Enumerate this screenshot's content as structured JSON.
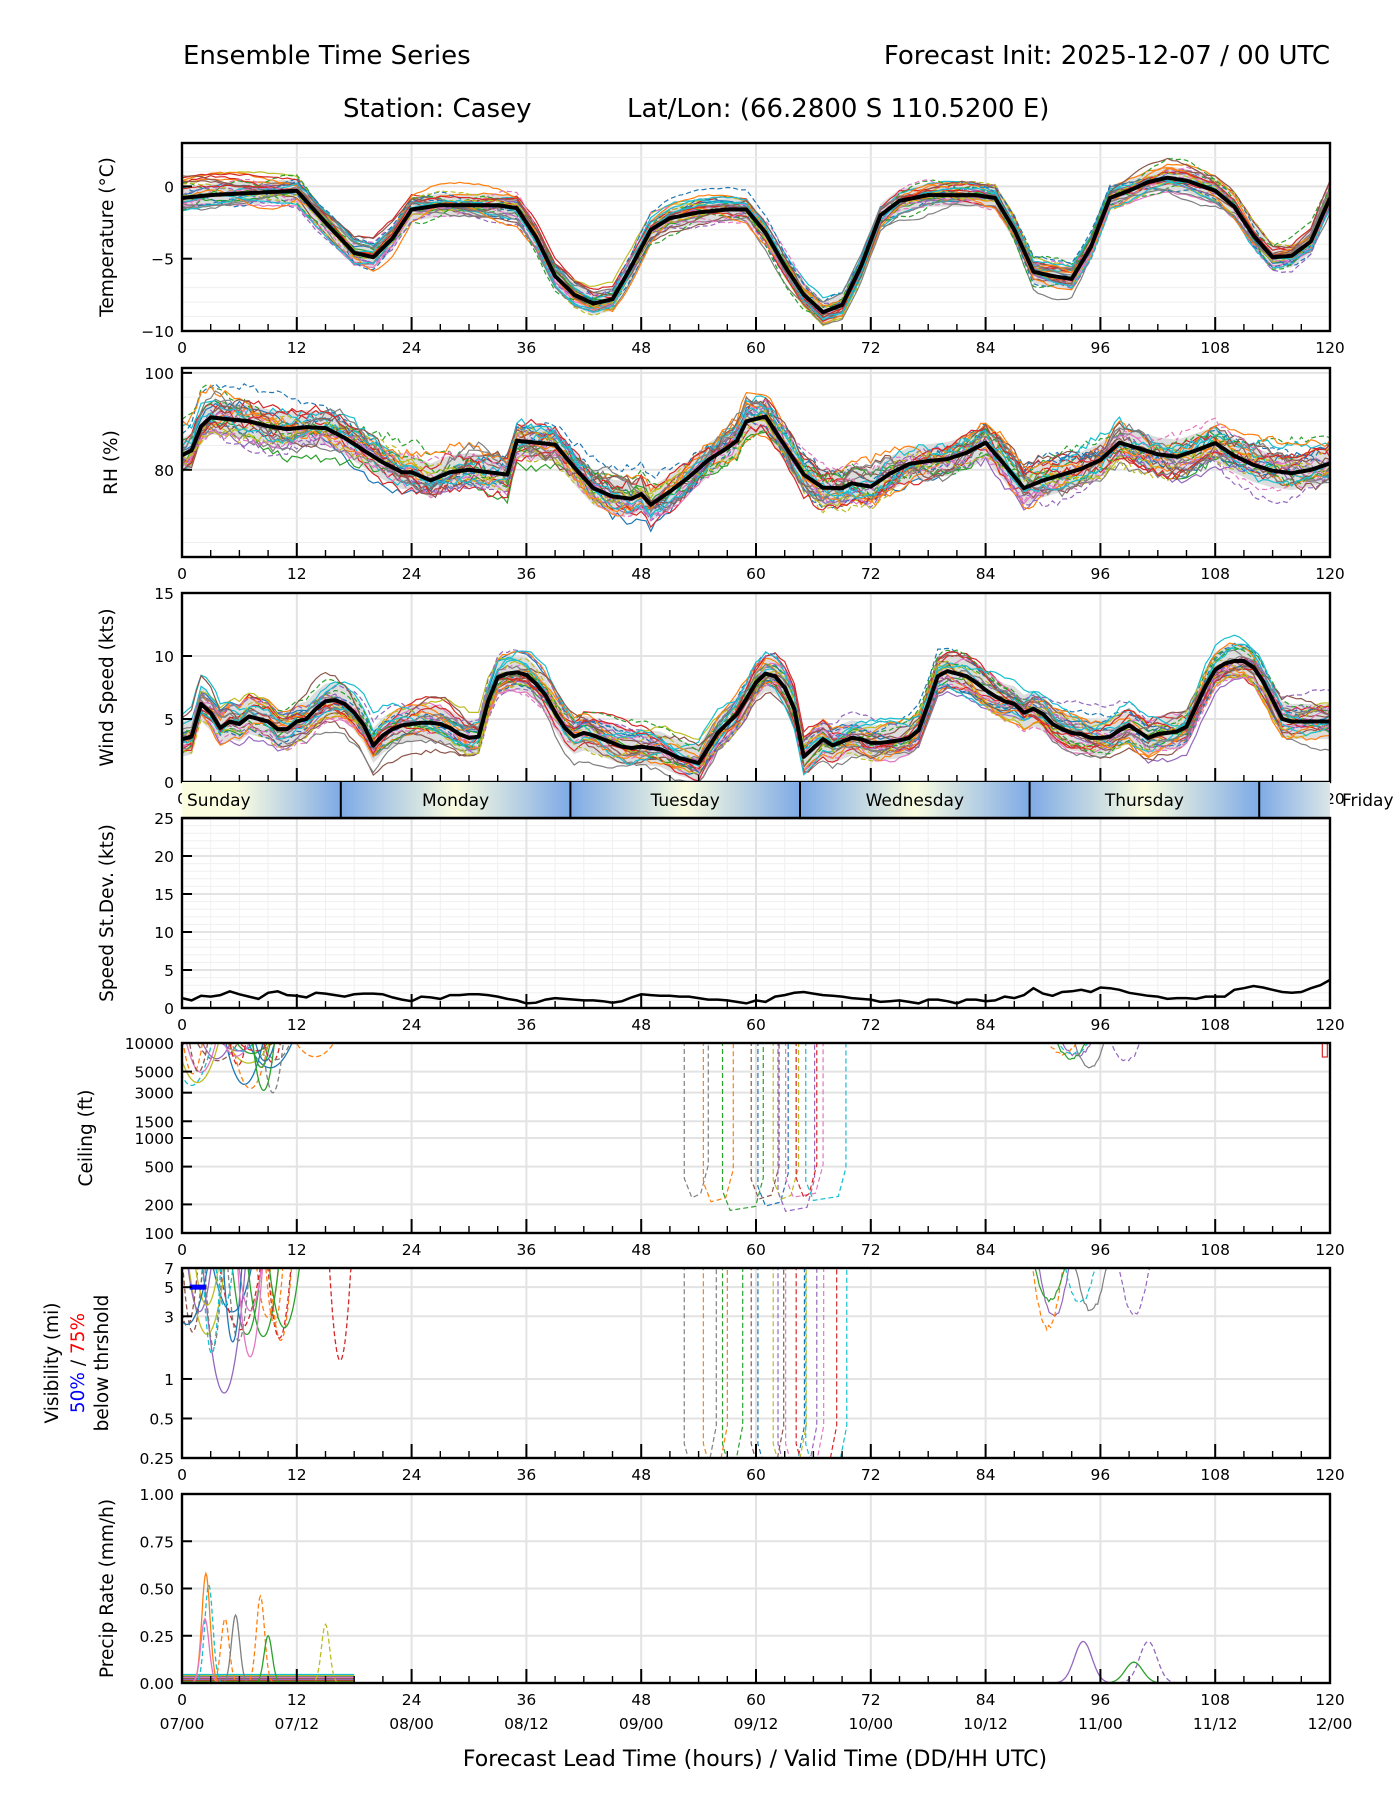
{
  "header": {
    "title_left": "Ensemble Time Series",
    "title_right": "Forecast Init: 2025-12-07 / 00 UTC",
    "station": "Station: Casey",
    "latlon": "Lat/Lon: (66.2800 S 110.5200 E)"
  },
  "x_axis": {
    "label": "Forecast Lead Time (hours) / Valid Time (DD/HH UTC)",
    "range": [
      0,
      120
    ],
    "ticks": [
      0,
      12,
      24,
      36,
      48,
      60,
      72,
      84,
      96,
      108,
      120
    ],
    "tick_labels": [
      "0",
      "12",
      "24",
      "36",
      "48",
      "60",
      "72",
      "84",
      "96",
      "108",
      "120"
    ],
    "valid_time_labels": [
      "07/00",
      "07/12",
      "08/00",
      "08/12",
      "09/00",
      "09/12",
      "10/00",
      "10/12",
      "11/00",
      "11/12",
      "12/00"
    ]
  },
  "day_band": {
    "days": [
      {
        "label": "Sunday",
        "start": 0,
        "end": 16.6
      },
      {
        "label": "Monday",
        "start": 16.6,
        "end": 40.6
      },
      {
        "label": "Tuesday",
        "start": 40.6,
        "end": 64.6
      },
      {
        "label": "Wednesday",
        "start": 64.6,
        "end": 88.6
      },
      {
        "label": "Thursday",
        "start": 88.6,
        "end": 112.6
      },
      {
        "label": "Friday",
        "start": 112.6,
        "end": 120
      }
    ],
    "colors": {
      "light": "#fbfde0",
      "dark": "#7eaae6"
    }
  },
  "colors": {
    "mean": "#000000",
    "spread": "#d9d9d9",
    "members": [
      "#1f77b4",
      "#ff7f0e",
      "#2ca02c",
      "#d62728",
      "#9467bd",
      "#8c564b",
      "#e377c2",
      "#7f7f7f",
      "#bcbd22",
      "#17becf"
    ],
    "grid": "#e3e3e3",
    "vis_50": "#0000ff",
    "vis_75": "#ff0000"
  },
  "chart_data": [
    {
      "id": "temperature",
      "type": "line",
      "title": "",
      "ylabel": "Temperature (°C)",
      "ylim": [
        -10,
        3
      ],
      "yticks": [
        -10,
        -5,
        0
      ],
      "ytick_labels": [
        "−10",
        "−5",
        "0"
      ],
      "x": [
        0,
        3,
        6,
        9,
        12,
        15,
        18,
        20,
        22,
        24,
        27,
        30,
        33,
        35,
        37,
        39,
        41,
        43,
        45,
        47,
        49,
        51,
        54,
        57,
        59,
        61,
        63,
        65,
        67,
        69,
        71,
        73,
        75,
        78,
        81,
        83,
        85,
        87,
        89,
        91,
        93,
        95,
        97,
        99,
        101,
        103,
        105,
        108,
        110,
        112,
        114,
        116,
        118,
        120
      ],
      "mean": [
        -0.8,
        -0.6,
        -0.5,
        -0.4,
        -0.3,
        -2.5,
        -4.6,
        -4.9,
        -3.6,
        -1.6,
        -1.3,
        -1.3,
        -1.3,
        -1.5,
        -3.5,
        -6.2,
        -7.5,
        -8.1,
        -7.8,
        -5.5,
        -3.0,
        -2.2,
        -1.8,
        -1.6,
        -1.6,
        -3.2,
        -5.5,
        -7.5,
        -8.7,
        -8.2,
        -5.5,
        -2.0,
        -1.0,
        -0.6,
        -0.6,
        -0.6,
        -0.8,
        -3.0,
        -5.9,
        -6.2,
        -6.4,
        -4.2,
        -0.8,
        -0.3,
        0.3,
        0.6,
        0.4,
        -0.3,
        -1.4,
        -3.4,
        -4.9,
        -4.8,
        -3.8,
        -0.8
      ],
      "members_count": 30,
      "spread": 0.8
    },
    {
      "id": "rh",
      "type": "line",
      "ylabel": "RH (%)",
      "ylim": [
        62,
        101
      ],
      "yticks": [
        80,
        100
      ],
      "ytick_labels": [
        "80",
        "100"
      ],
      "x": [
        0,
        1,
        2,
        3,
        5,
        7,
        9,
        11,
        13,
        15,
        17,
        19,
        21,
        23,
        24,
        26,
        28,
        30,
        32,
        34,
        35,
        37,
        39,
        41,
        43,
        45,
        47,
        48,
        49,
        51,
        53,
        55,
        57,
        58,
        59,
        61,
        63,
        65,
        67,
        69,
        70,
        72,
        74,
        76,
        78,
        80,
        82,
        84,
        86,
        88,
        90,
        92,
        94,
        96,
        98,
        100,
        102,
        104,
        106,
        108,
        110,
        112,
        114,
        116,
        118,
        120
      ],
      "mean": [
        83,
        84,
        89,
        90.8,
        90.4,
        90,
        89,
        88.4,
        88.8,
        88.6,
        86.6,
        84,
        81.5,
        79.5,
        79.5,
        77.8,
        79.5,
        80,
        79.5,
        79,
        86,
        85.6,
        85.2,
        80.5,
        76.2,
        74.5,
        74,
        75,
        72.8,
        75.5,
        78.5,
        82,
        84.5,
        86,
        90,
        91,
        85,
        79,
        76.3,
        76.2,
        77.2,
        76.5,
        79.2,
        81.2,
        81.8,
        82.2,
        83.5,
        85.6,
        81,
        76.2,
        77.8,
        79,
        80.2,
        82,
        85.6,
        84.4,
        83.2,
        82.7,
        84,
        85.5,
        82.9,
        81,
        79.8,
        79.3,
        80,
        81.3
      ],
      "members_count": 30,
      "spread": 3.5
    },
    {
      "id": "wind_speed",
      "type": "line",
      "ylabel": "Wind Speed (kts)",
      "ylim": [
        0,
        15
      ],
      "yticks": [
        0,
        5,
        10,
        15
      ],
      "ytick_labels": [
        "0",
        "5",
        "10",
        "15"
      ],
      "x": [
        0,
        1,
        2,
        3,
        4,
        5,
        6,
        7,
        8,
        9,
        10,
        11,
        12,
        13,
        14,
        15,
        16,
        17,
        18,
        19,
        20,
        21,
        22,
        23,
        24,
        25,
        26,
        27,
        28,
        29,
        30,
        31,
        32,
        33,
        34,
        35,
        36,
        37,
        38,
        39,
        40,
        41,
        42,
        43,
        44,
        45,
        46,
        47,
        48,
        50,
        52,
        54,
        56,
        58,
        59,
        60,
        61,
        62,
        63,
        64,
        65,
        66,
        67,
        68,
        69,
        70,
        71,
        72,
        73,
        74,
        75,
        76,
        77,
        78,
        79,
        80,
        81,
        82,
        83,
        84,
        85,
        86,
        87,
        88,
        89,
        90,
        91,
        92,
        93,
        94,
        95,
        96,
        97,
        98,
        99,
        100,
        101,
        102,
        103,
        104,
        105,
        106,
        107,
        108,
        109,
        110,
        111,
        112,
        113,
        114,
        115,
        116,
        117,
        118,
        119,
        120
      ],
      "mean": [
        3.4,
        3.6,
        6.2,
        5.5,
        4.3,
        4.8,
        4.6,
        5.2,
        5,
        4.8,
        4.2,
        4.2,
        4.8,
        5,
        5.8,
        6.4,
        6.5,
        6.2,
        5.5,
        4.5,
        2.9,
        3.7,
        4.2,
        4.5,
        4.6,
        4.7,
        4.7,
        4.6,
        4.3,
        3.8,
        3.5,
        3.6,
        6.4,
        8.3,
        8.6,
        8.7,
        8.5,
        7.8,
        6.9,
        5.5,
        4.3,
        3.6,
        3.9,
        3.7,
        3.4,
        3.1,
        2.8,
        2.7,
        2.8,
        2.6,
        1.9,
        1.5,
        3.9,
        5.4,
        6.6,
        7.9,
        8.6,
        8.4,
        7.5,
        5.8,
        2,
        2.7,
        3.4,
        2.9,
        3.2,
        3.5,
        3.4,
        3.1,
        3.1,
        3.2,
        3.3,
        3.5,
        4.1,
        6.2,
        8.4,
        8.8,
        8.6,
        8.4,
        7.9,
        7.3,
        6.8,
        6.4,
        6.2,
        5.5,
        5.8,
        5.4,
        4.6,
        4.2,
        3.9,
        3.8,
        3.5,
        3.5,
        3.6,
        4.1,
        4.5,
        4.0,
        3.5,
        3.8,
        3.9,
        4.0,
        4.4,
        6.0,
        7.6,
        8.9,
        9.4,
        9.6,
        9.6,
        9.1,
        8.0,
        6.5,
        5.0,
        4.8,
        4.8,
        4.8,
        4.8,
        4.8
      ],
      "members_count": 30,
      "spread": 1.4
    },
    {
      "id": "speed_stdev",
      "type": "line",
      "ylabel": "Speed St.Dev. (kts)",
      "ylim": [
        0,
        25
      ],
      "yticks": [
        0,
        5,
        10,
        15,
        20,
        25
      ],
      "ytick_labels": [
        "0",
        "5",
        "10",
        "15",
        "20",
        "25"
      ],
      "x": [
        0,
        1,
        2,
        3,
        4,
        5,
        6,
        7,
        8,
        9,
        10,
        11,
        12,
        13,
        14,
        15,
        16,
        17,
        18,
        19,
        20,
        21,
        22,
        23,
        24,
        25,
        26,
        27,
        28,
        29,
        30,
        31,
        32,
        33,
        34,
        35,
        36,
        37,
        38,
        39,
        40,
        41,
        42,
        43,
        44,
        45,
        46,
        47,
        48,
        49,
        50,
        51,
        52,
        53,
        54,
        55,
        56,
        57,
        58,
        59,
        60,
        61,
        62,
        63,
        64,
        65,
        66,
        67,
        68,
        69,
        70,
        71,
        72,
        73,
        74,
        75,
        76,
        77,
        78,
        79,
        80,
        81,
        82,
        83,
        84,
        85,
        86,
        87,
        88,
        89,
        90,
        91,
        92,
        93,
        94,
        95,
        96,
        97,
        98,
        99,
        100,
        101,
        102,
        103,
        104,
        105,
        106,
        107,
        108,
        109,
        110,
        111,
        112,
        113,
        114,
        115,
        116,
        117,
        118,
        119,
        120
      ],
      "values": [
        1.3,
        1.0,
        1.6,
        1.5,
        1.7,
        2.2,
        1.8,
        1.5,
        1.2,
        2.0,
        2.2,
        1.7,
        1.6,
        1.4,
        2.0,
        1.9,
        1.7,
        1.5,
        1.8,
        1.9,
        1.9,
        1.8,
        1.4,
        1.1,
        0.9,
        1.5,
        1.4,
        1.2,
        1.7,
        1.7,
        1.8,
        1.8,
        1.7,
        1.5,
        1.2,
        1.0,
        0.6,
        0.7,
        1.1,
        1.3,
        1.2,
        1.1,
        1.0,
        1.0,
        0.9,
        0.7,
        0.9,
        1.4,
        1.8,
        1.7,
        1.6,
        1.6,
        1.5,
        1.5,
        1.3,
        1.1,
        1.1,
        1.0,
        0.8,
        0.6,
        1.0,
        0.8,
        1.5,
        1.7,
        2.0,
        2.1,
        1.9,
        1.7,
        1.6,
        1.5,
        1.3,
        1.2,
        1.1,
        0.8,
        0.9,
        1.0,
        0.8,
        0.6,
        1.1,
        1.1,
        0.9,
        0.6,
        1.1,
        1.1,
        0.9,
        1.0,
        1.5,
        1.3,
        1.7,
        2.6,
        1.9,
        1.6,
        2.1,
        2.2,
        2.4,
        2.1,
        2.7,
        2.6,
        2.4,
        2.0,
        1.8,
        1.6,
        1.5,
        1.2,
        1.3,
        1.3,
        1.2,
        1.5,
        1.5,
        1.5,
        2.4,
        2.6,
        2.9,
        2.7,
        2.4,
        2.1,
        2.0,
        2.1,
        2.6,
        3.0,
        3.7
      ]
    },
    {
      "id": "ceiling",
      "type": "line",
      "ylabel": "Ceiling (ft)",
      "yscale": "log",
      "ylim": [
        100,
        10000
      ],
      "yticks": [
        100,
        200,
        500,
        1000,
        1500,
        3000,
        5000,
        10000
      ],
      "ytick_labels": [
        "100",
        "200",
        "500",
        "1000",
        "1500",
        "3000",
        "5000",
        "10000"
      ],
      "notes": "Members mostly above 10000 ft; early dips (0–18 h) to ~2800–8000 ft; low ceilings ~140–300 ft around 52–66 h; dips to ~5500 ft near 88–102 h"
    },
    {
      "id": "visibility",
      "type": "line",
      "ylabel": "Visibility (mi)",
      "ylabel_line2": "50% / 75%",
      "ylabel_line3": "below thrshold",
      "yscale": "log",
      "ylim": [
        0.25,
        7
      ],
      "yticks": [
        0.25,
        0.5,
        1,
        3,
        5,
        7
      ],
      "ytick_labels": [
        "0.25",
        "0.5",
        "1",
        "3",
        "5",
        "7"
      ],
      "threshold_50_marker": {
        "x_start": 0.8,
        "x_end": 2.5,
        "value": 5
      },
      "notes": "Early dips 0–18 h down to ~0.65 mi; low visibility curtains ~52–66 h; dips near 93–102 h to ~2.4 mi"
    },
    {
      "id": "precip",
      "type": "line",
      "ylabel": "Precip Rate (mm/h)",
      "ylim": [
        0,
        1
      ],
      "yticks": [
        0,
        0.25,
        0.5,
        0.75,
        1.0
      ],
      "ytick_labels": [
        "0.00",
        "0.25",
        "0.50",
        "0.75",
        "1.00"
      ],
      "peaks": [
        {
          "x": 2.5,
          "value": 0.58,
          "member": 1
        },
        {
          "x": 2.8,
          "value": 0.52,
          "member": 9
        },
        {
          "x": 2.4,
          "value": 0.34,
          "member": 6
        },
        {
          "x": 4.5,
          "value": 0.34,
          "member": 1
        },
        {
          "x": 5.6,
          "value": 0.36,
          "member": 7
        },
        {
          "x": 8.2,
          "value": 0.46,
          "member": 1
        },
        {
          "x": 9.0,
          "value": 0.25,
          "member": 2
        },
        {
          "x": 15.0,
          "value": 0.31,
          "member": 8
        },
        {
          "x": 94.2,
          "value": 0.22,
          "member": 4
        },
        {
          "x": 101.0,
          "value": 0.22,
          "member": 4
        },
        {
          "x": 99.5,
          "value": 0.11,
          "member": 2
        }
      ]
    }
  ]
}
